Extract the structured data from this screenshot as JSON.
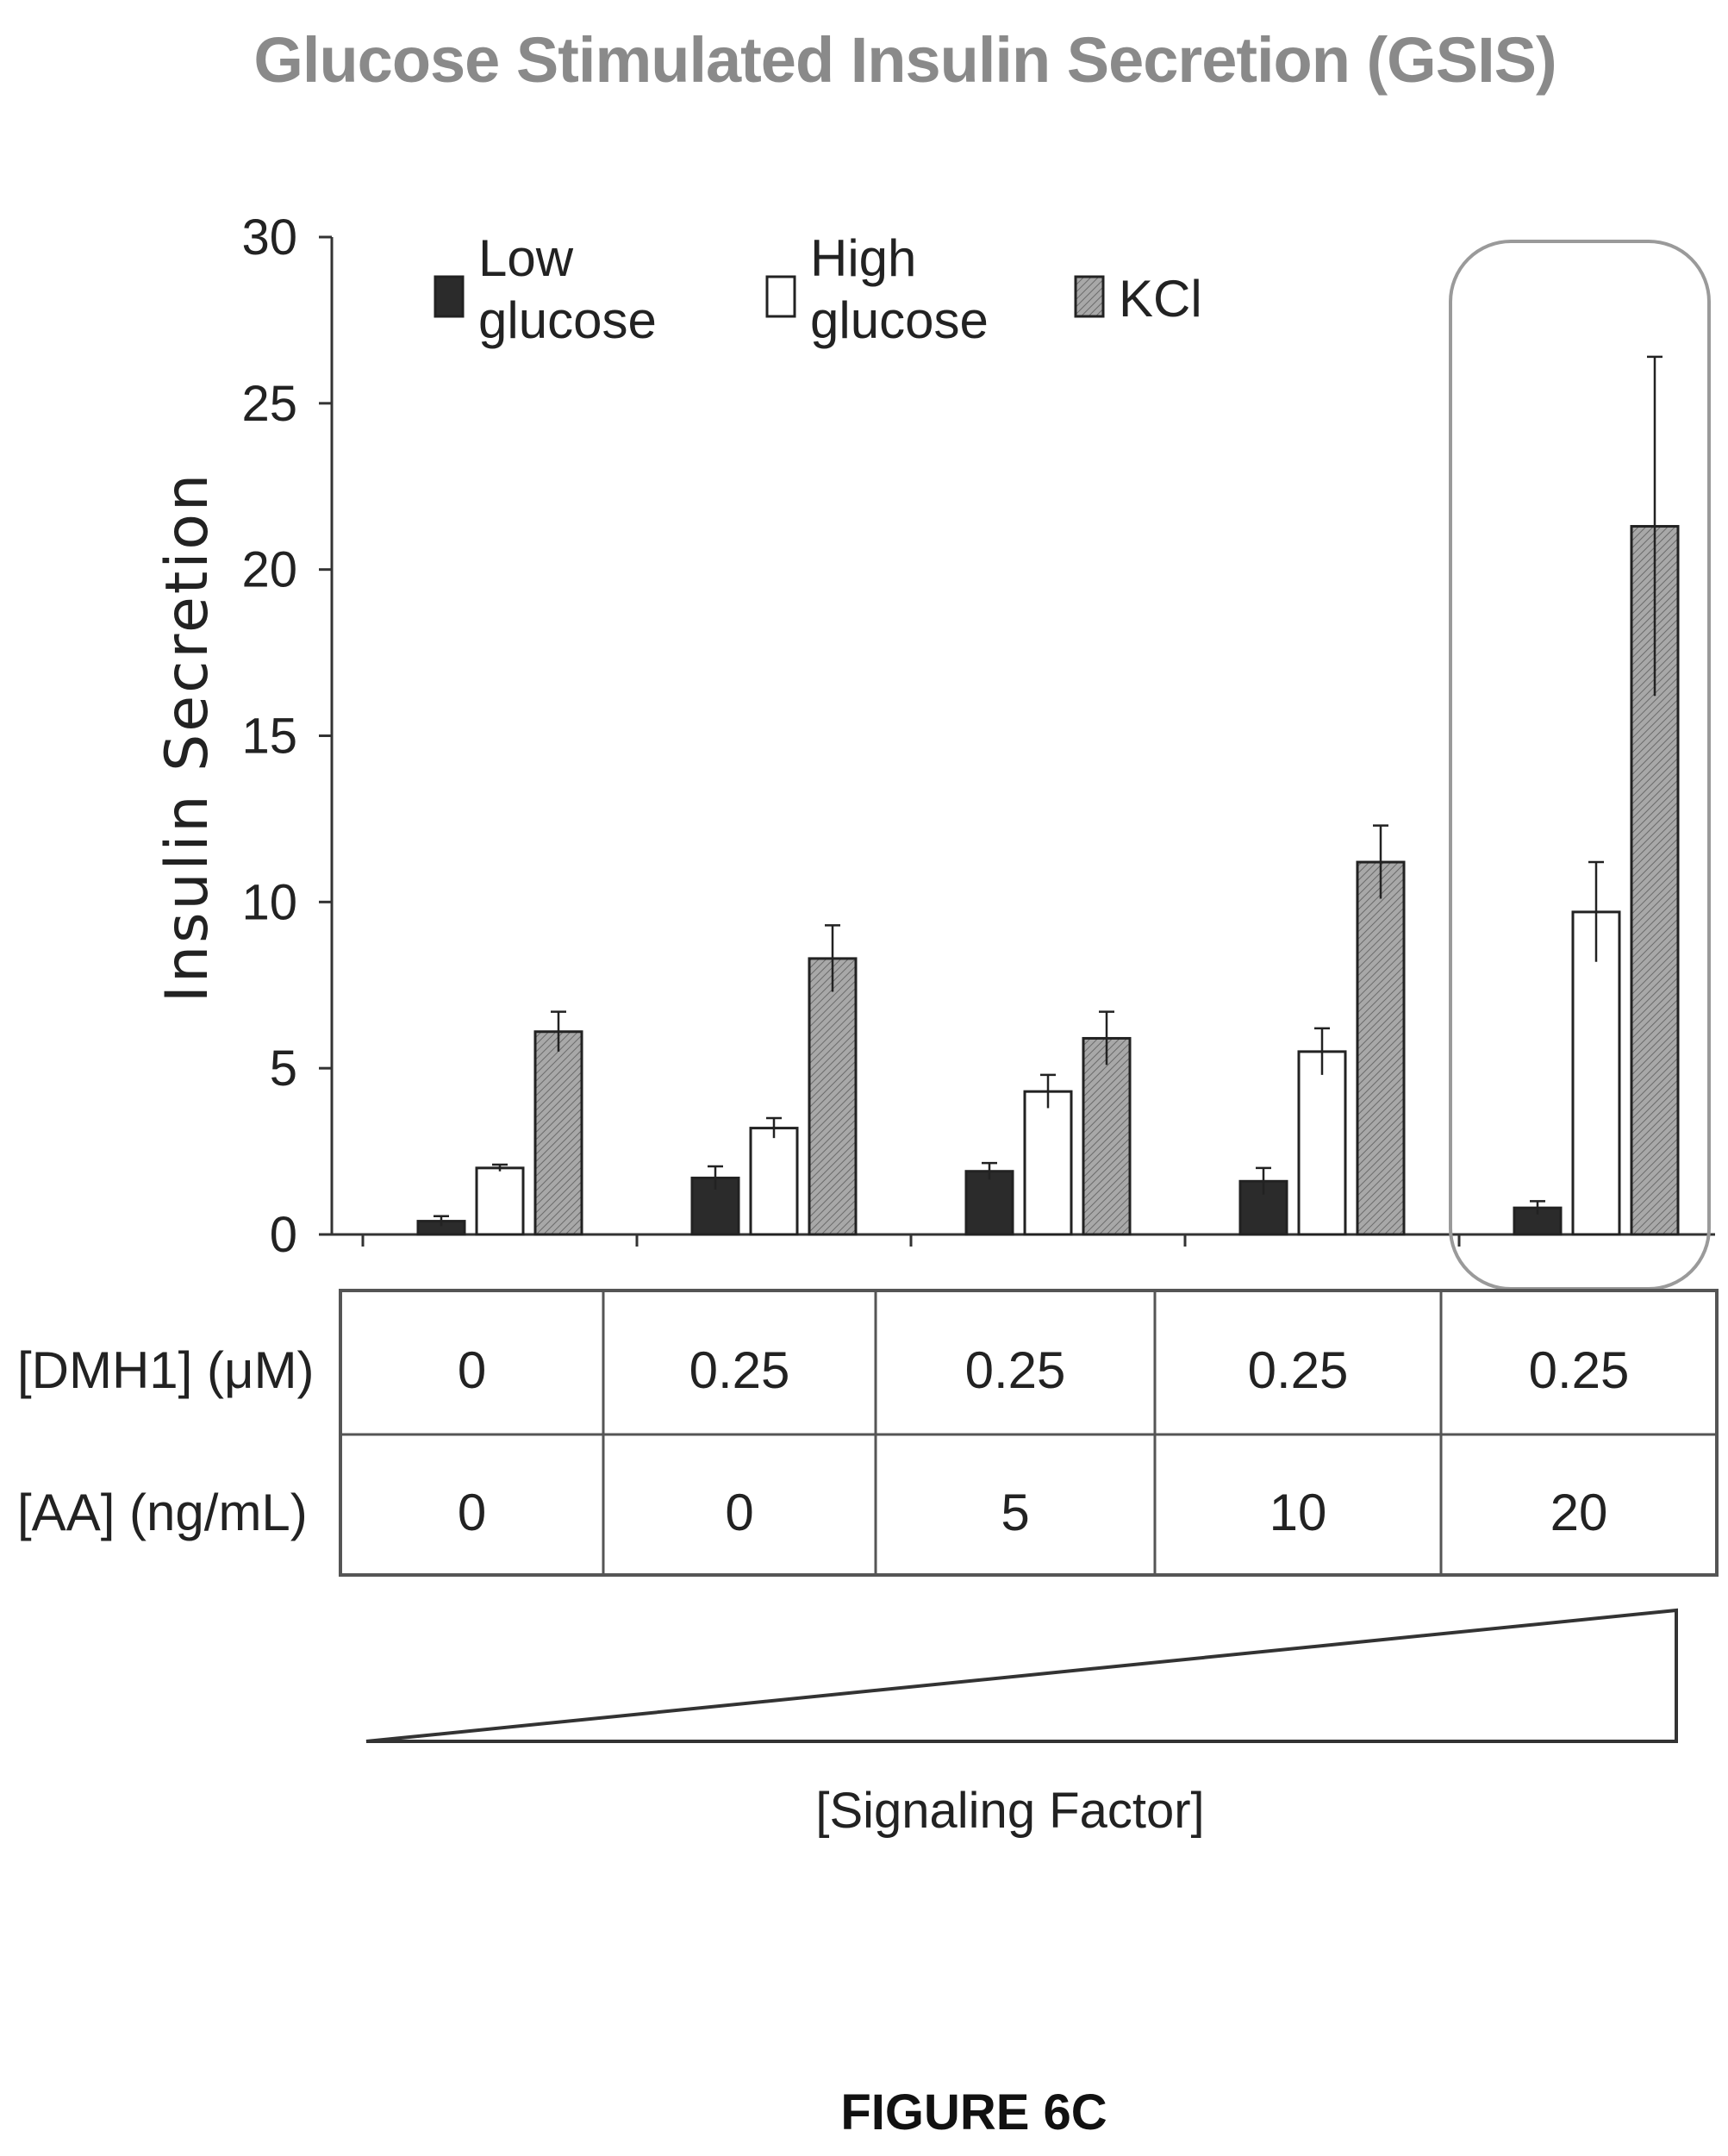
{
  "chart_data": {
    "type": "bar",
    "title": "Glucose Stimulated Insulin Secretion (GSIS)",
    "ylabel": "Insulin Secretion",
    "ylim": [
      0,
      30
    ],
    "yticks": [
      "0",
      "5",
      "10",
      "15",
      "20",
      "25",
      "30"
    ],
    "grid": false,
    "legend_position": "top",
    "series": [
      {
        "name": "Low glucose",
        "name_lines": [
          "Low",
          "glucose"
        ],
        "fill": "#2b2b2b",
        "values": [
          0.4,
          1.7,
          1.9,
          1.6,
          0.8
        ],
        "errors": [
          0.15,
          0.35,
          0.25,
          0.4,
          0.2
        ]
      },
      {
        "name": "High glucose",
        "name_lines": [
          "High",
          "glucose"
        ],
        "fill": "#ffffff",
        "values": [
          2.0,
          3.2,
          4.3,
          5.5,
          9.7
        ],
        "errors": [
          0.1,
          0.3,
          0.5,
          0.7,
          1.5
        ]
      },
      {
        "name": "KCl",
        "name_lines": [
          "KCl"
        ],
        "fill": "#9a9a9a",
        "values": [
          6.1,
          8.3,
          5.9,
          11.2,
          21.3
        ],
        "errors": [
          0.6,
          1.0,
          0.8,
          1.1,
          5.1
        ]
      }
    ],
    "table": {
      "rows": [
        {
          "label": "[DMH1] (μM)",
          "values": [
            "0",
            "0.25",
            "0.25",
            "0.25",
            "0.25"
          ]
        },
        {
          "label": "[AA] (ng/mL)",
          "values": [
            "0",
            "0",
            "5",
            "10",
            "20"
          ]
        }
      ]
    },
    "highlighted_group": 4,
    "gradient_label": "[Signaling  Factor]"
  },
  "figure_label": "FIGURE 6C"
}
